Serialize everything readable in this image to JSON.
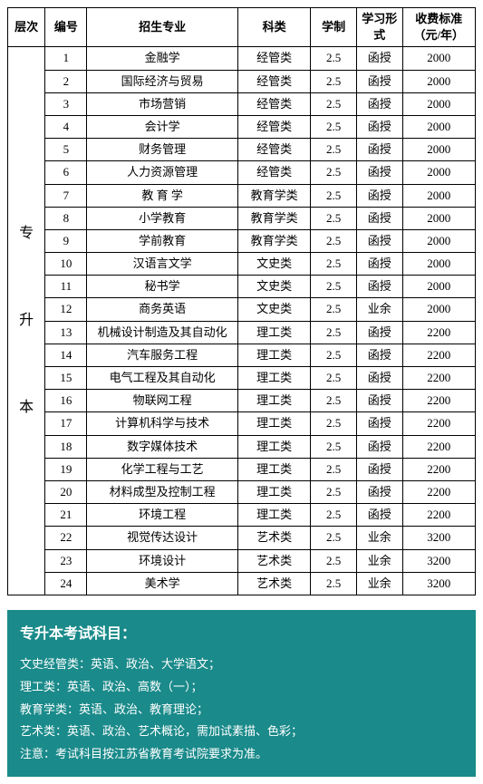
{
  "table": {
    "headers": {
      "level": "层次",
      "num": "编号",
      "major": "招生专业",
      "category": "科类",
      "duration": "学制",
      "mode": "学习形式",
      "fee": "收费标准（元/年）"
    },
    "level_label": "专\n\n升\n\n本",
    "rows": [
      {
        "num": "1",
        "major": "金融学",
        "category": "经管类",
        "duration": "2.5",
        "mode": "函授",
        "fee": "2000"
      },
      {
        "num": "2",
        "major": "国际经济与贸易",
        "category": "经管类",
        "duration": "2.5",
        "mode": "函授",
        "fee": "2000"
      },
      {
        "num": "3",
        "major": "市场营销",
        "category": "经管类",
        "duration": "2.5",
        "mode": "函授",
        "fee": "2000"
      },
      {
        "num": "4",
        "major": "会计学",
        "category": "经管类",
        "duration": "2.5",
        "mode": "函授",
        "fee": "2000"
      },
      {
        "num": "5",
        "major": "财务管理",
        "category": "经管类",
        "duration": "2.5",
        "mode": "函授",
        "fee": "2000"
      },
      {
        "num": "6",
        "major": "人力资源管理",
        "category": "经管类",
        "duration": "2.5",
        "mode": "函授",
        "fee": "2000"
      },
      {
        "num": "7",
        "major": "教 育 学",
        "category": "教育学类",
        "duration": "2.5",
        "mode": "函授",
        "fee": "2000"
      },
      {
        "num": "8",
        "major": "小学教育",
        "category": "教育学类",
        "duration": "2.5",
        "mode": "函授",
        "fee": "2000"
      },
      {
        "num": "9",
        "major": "学前教育",
        "category": "教育学类",
        "duration": "2.5",
        "mode": "函授",
        "fee": "2000"
      },
      {
        "num": "10",
        "major": "汉语言文学",
        "category": "文史类",
        "duration": "2.5",
        "mode": "函授",
        "fee": "2000"
      },
      {
        "num": "11",
        "major": "秘书学",
        "category": "文史类",
        "duration": "2.5",
        "mode": "函授",
        "fee": "2000"
      },
      {
        "num": "12",
        "major": "商务英语",
        "category": "文史类",
        "duration": "2.5",
        "mode": "业余",
        "fee": "2000"
      },
      {
        "num": "13",
        "major": "机械设计制造及其自动化",
        "category": "理工类",
        "duration": "2.5",
        "mode": "函授",
        "fee": "2200"
      },
      {
        "num": "14",
        "major": "汽车服务工程",
        "category": "理工类",
        "duration": "2.5",
        "mode": "函授",
        "fee": "2200"
      },
      {
        "num": "15",
        "major": "电气工程及其自动化",
        "category": "理工类",
        "duration": "2.5",
        "mode": "函授",
        "fee": "2200"
      },
      {
        "num": "16",
        "major": "物联网工程",
        "category": "理工类",
        "duration": "2.5",
        "mode": "函授",
        "fee": "2200"
      },
      {
        "num": "17",
        "major": "计算机科学与技术",
        "category": "理工类",
        "duration": "2.5",
        "mode": "函授",
        "fee": "2200"
      },
      {
        "num": "18",
        "major": "数字媒体技术",
        "category": "理工类",
        "duration": "2.5",
        "mode": "函授",
        "fee": "2200"
      },
      {
        "num": "19",
        "major": "化学工程与工艺",
        "category": "理工类",
        "duration": "2.5",
        "mode": "函授",
        "fee": "2200"
      },
      {
        "num": "20",
        "major": "材料成型及控制工程",
        "category": "理工类",
        "duration": "2.5",
        "mode": "函授",
        "fee": "2200"
      },
      {
        "num": "21",
        "major": "环境工程",
        "category": "理工类",
        "duration": "2.5",
        "mode": "函授",
        "fee": "2200"
      },
      {
        "num": "22",
        "major": "视觉传达设计",
        "category": "艺术类",
        "duration": "2.5",
        "mode": "业余",
        "fee": "3200"
      },
      {
        "num": "23",
        "major": "环境设计",
        "category": "艺术类",
        "duration": "2.5",
        "mode": "业余",
        "fee": "3200"
      },
      {
        "num": "24",
        "major": "美术学",
        "category": "艺术类",
        "duration": "2.5",
        "mode": "业余",
        "fee": "3200"
      }
    ],
    "border_color": "#000000",
    "background_color": "#ffffff",
    "font_size": 13
  },
  "info": {
    "title": "专升本考试科目：",
    "lines": [
      "文史经管类：英语、政治、大学语文；",
      "理工类：英语、政治、高数（一）；",
      "教育学类：英语、政治、教育理论；",
      "艺术类：英语、政治、艺术概论，需加试素描、色彩；",
      "注意：考试科目按江苏省教育考试院要求为准。"
    ],
    "background_color": "#1a8a8a",
    "text_color": "#ffffff",
    "title_fontsize": 16,
    "body_fontsize": 13
  }
}
